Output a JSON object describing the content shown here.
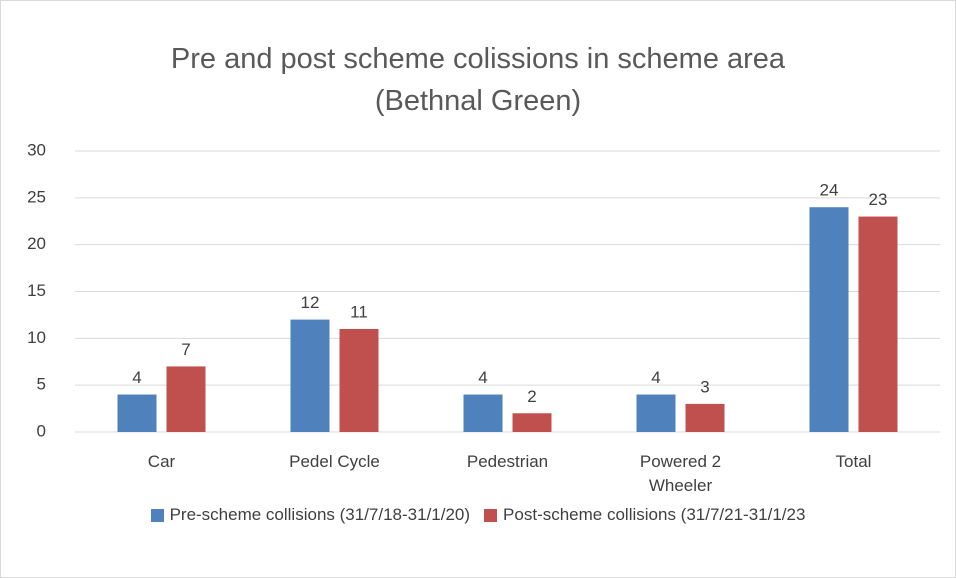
{
  "chart_data": {
    "type": "bar",
    "title": "Pre and post scheme colissions in scheme area (Bethnal Green)",
    "categories": [
      "Car",
      "Pedel Cycle",
      "Pedestrian",
      "Powered 2 Wheeler",
      "Total"
    ],
    "series": [
      {
        "name": "Pre-scheme collisions (31/7/18-31/1/20)",
        "color": "#4f81bd",
        "values": [
          4,
          12,
          4,
          4,
          24
        ]
      },
      {
        "name": "Post-scheme collisions (31/7/21-31/1/23",
        "color": "#c0504d",
        "values": [
          7,
          11,
          2,
          3,
          23
        ]
      }
    ],
    "ylim": [
      0,
      30
    ],
    "yticks": [
      0,
      5,
      10,
      15,
      20,
      25,
      30
    ],
    "grid": true,
    "legend": "bottom"
  }
}
